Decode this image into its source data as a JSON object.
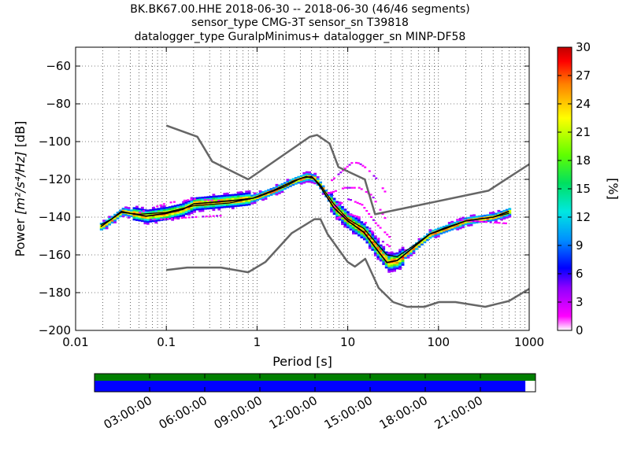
{
  "chart_data": {
    "type": "heatmap",
    "title_lines": [
      "BK.BK67.00.HHE   2018-06-30 -- 2018-06-30  (46/46 segments)",
      "sensor_type CMG-3T sensor_sn T39818",
      "datalogger_type GuralpMinimus+ datalogger_sn MINP-DF58"
    ],
    "xlabel": "Period [s]",
    "ylabel_prefix": "Power ",
    "ylabel_units": "[m²/s⁴/Hz]",
    "ylabel_suffix": " [dB]",
    "xscale": "log",
    "xlim": [
      0.01,
      1000
    ],
    "ylim": [
      -200,
      -50
    ],
    "xticks": [
      0.01,
      0.1,
      1,
      10,
      100,
      1000
    ],
    "xtick_labels": [
      "0.01",
      "0.1",
      "1",
      "10",
      "100",
      "1000"
    ],
    "yticks": [
      -60,
      -80,
      -100,
      -120,
      -140,
      -160,
      -180,
      -200
    ],
    "ytick_labels": [
      "−60",
      "−80",
      "−100",
      "−120",
      "−140",
      "−160",
      "−180",
      "−200"
    ],
    "grid": "dotted",
    "colorbar": {
      "label": "[%]",
      "range": [
        0,
        30
      ],
      "ticks": [
        0,
        3,
        6,
        9,
        12,
        15,
        18,
        21,
        24,
        27,
        30
      ],
      "tick_labels": [
        "0",
        "3",
        "6",
        "9",
        "12",
        "15",
        "18",
        "21",
        "24",
        "27",
        "30"
      ]
    },
    "nhnm": [
      [
        0.1,
        -91.5
      ],
      [
        0.22,
        -97.4
      ],
      [
        0.32,
        -110.5
      ],
      [
        0.8,
        -120
      ],
      [
        3.8,
        -97.5
      ],
      [
        4.6,
        -96.5
      ],
      [
        6.3,
        -101
      ],
      [
        7.9,
        -113.5
      ],
      [
        15.4,
        -120
      ],
      [
        20,
        -138.5
      ],
      [
        354.8,
        -126
      ],
      [
        1000,
        -112
      ]
    ],
    "nlnm": [
      [
        0.1,
        -168
      ],
      [
        0.17,
        -166.7
      ],
      [
        0.4,
        -166.7
      ],
      [
        0.8,
        -169.2
      ],
      [
        1.24,
        -163.7
      ],
      [
        2.4,
        -148.6
      ],
      [
        4.3,
        -141.1
      ],
      [
        5,
        -141.1
      ],
      [
        6,
        -149
      ],
      [
        10,
        -163.8
      ],
      [
        12,
        -166.2
      ],
      [
        15.6,
        -162.1
      ],
      [
        21.9,
        -177.5
      ],
      [
        31.6,
        -185
      ],
      [
        45,
        -187.5
      ],
      [
        70,
        -187.5
      ],
      [
        101,
        -185
      ],
      [
        154,
        -185
      ],
      [
        328,
        -187.5
      ],
      [
        600,
        -184.4
      ],
      [
        1000,
        -178
      ]
    ],
    "mode": [
      [
        0.019,
        -145
      ],
      [
        0.025,
        -141
      ],
      [
        0.032,
        -137
      ],
      [
        0.04,
        -138
      ],
      [
        0.06,
        -139.5
      ],
      [
        0.1,
        -138
      ],
      [
        0.15,
        -136
      ],
      [
        0.2,
        -133
      ],
      [
        0.35,
        -132
      ],
      [
        0.6,
        -131
      ],
      [
        0.9,
        -130
      ],
      [
        1.5,
        -126
      ],
      [
        2.5,
        -121
      ],
      [
        3.5,
        -118.5
      ],
      [
        4.2,
        -119.5
      ],
      [
        5,
        -124
      ],
      [
        7,
        -135
      ],
      [
        10,
        -142
      ],
      [
        15,
        -148
      ],
      [
        20,
        -156
      ],
      [
        27,
        -164
      ],
      [
        35,
        -163
      ],
      [
        50,
        -157
      ],
      [
        80,
        -149
      ],
      [
        120,
        -146
      ],
      [
        200,
        -142
      ],
      [
        400,
        -140
      ],
      [
        600,
        -137
      ]
    ],
    "mean": [
      [
        0.019,
        -144
      ],
      [
        0.025,
        -141
      ],
      [
        0.032,
        -137.5
      ],
      [
        0.05,
        -138.5
      ],
      [
        0.1,
        -137.5
      ],
      [
        0.2,
        -134
      ],
      [
        0.5,
        -132.5
      ],
      [
        1,
        -129.5
      ],
      [
        2,
        -124
      ],
      [
        3,
        -119.5
      ],
      [
        4,
        -118.5
      ],
      [
        5,
        -123
      ],
      [
        7,
        -133
      ],
      [
        10,
        -141
      ],
      [
        15,
        -146
      ],
      [
        20,
        -153
      ],
      [
        27,
        -160
      ],
      [
        35,
        -161
      ],
      [
        50,
        -156
      ],
      [
        80,
        -149
      ],
      [
        120,
        -145.5
      ],
      [
        200,
        -142
      ],
      [
        400,
        -140
      ],
      [
        600,
        -138
      ]
    ],
    "time_axis": {
      "tick_labels": [
        "03:00:00",
        "06:00:00",
        "09:00:00",
        "12:00:00",
        "15:00:00",
        "18:00:00",
        "21:00:00"
      ],
      "data_coverage_fraction": 1.0,
      "psd_coverage_fraction": 0.977
    }
  },
  "colors": {
    "nhnm_nlnm": "#666666",
    "mode": "#000000",
    "mean": "#000000",
    "coverage_bar": "#007f00",
    "psd_bar": "#0000ff",
    "colorbar_stops": [
      "#ffffff",
      "#ff00ff",
      "#8000ff",
      "#0000ff",
      "#00a0ff",
      "#00f0c0",
      "#00e000",
      "#a0ff00",
      "#ffff00",
      "#ff8000",
      "#ff0000",
      "#c00000"
    ]
  }
}
